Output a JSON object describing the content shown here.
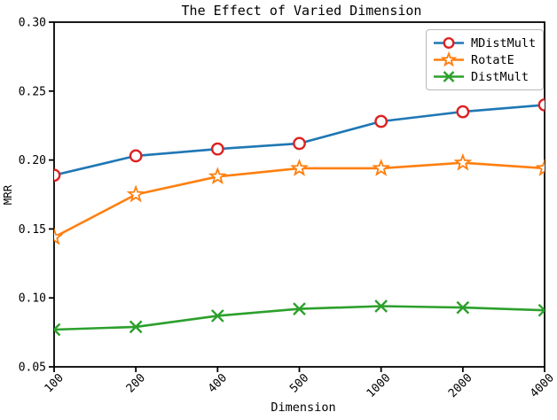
{
  "figure": {
    "title": "The Effect of Varied Dimension",
    "xlabel": "Dimension",
    "ylabel": "MRR"
  },
  "chart_data": {
    "type": "line",
    "title": "The Effect of Varied Dimension",
    "xlabel": "Dimension",
    "ylabel": "MRR",
    "x_scale": "categorical",
    "categories": [
      "100",
      "200",
      "400",
      "500",
      "1000",
      "2000",
      "4000"
    ],
    "ylim": [
      0.05,
      0.3
    ],
    "yticks": [
      0.05,
      0.1,
      0.15,
      0.2,
      0.25,
      0.3
    ],
    "grid": false,
    "legend_position": "upper right",
    "axis_color": "#000000",
    "series": [
      {
        "name": "MDistMult",
        "line_color": "#1f77b4",
        "marker": "circle",
        "marker_color": "#dd2222",
        "values": [
          0.189,
          0.203,
          0.208,
          0.212,
          0.228,
          0.235,
          0.24
        ]
      },
      {
        "name": "RotatE",
        "line_color": "#ff7f0e",
        "marker": "star",
        "marker_color": "#ff7f0e",
        "values": [
          0.144,
          0.175,
          0.188,
          0.194,
          0.194,
          0.198,
          0.194
        ]
      },
      {
        "name": "DistMult",
        "line_color": "#2ca02c",
        "marker": "x",
        "marker_color": "#2ca02c",
        "values": [
          0.077,
          0.079,
          0.087,
          0.092,
          0.094,
          0.093,
          0.091
        ]
      }
    ]
  }
}
